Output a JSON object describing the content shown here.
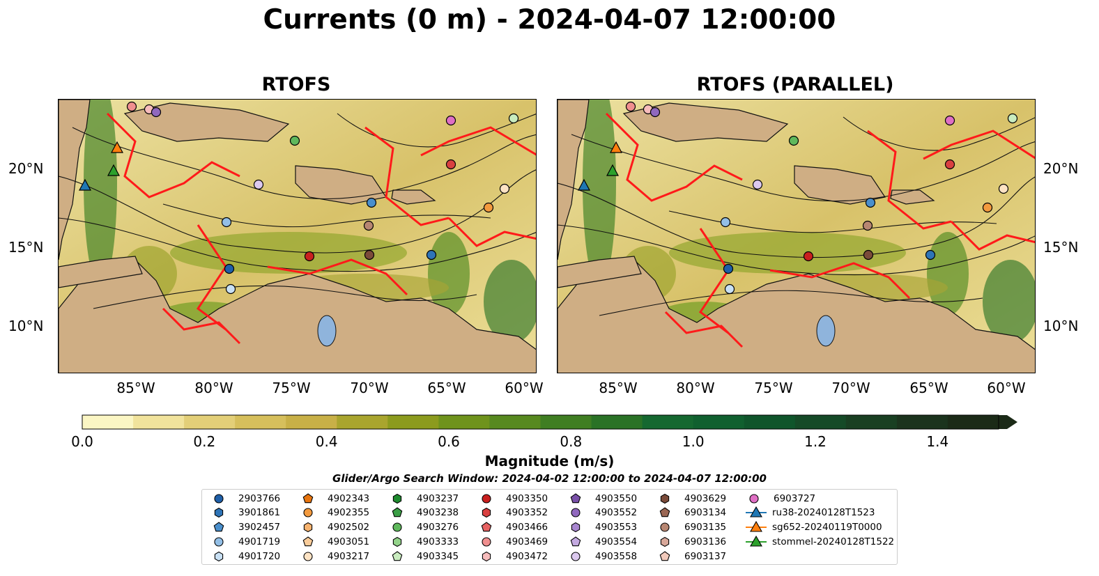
{
  "title": "Currents (0 m) - 2024-04-07 12:00:00",
  "panels": [
    {
      "title": "RTOFS"
    },
    {
      "title": "RTOFS (PARALLEL)"
    }
  ],
  "axes": {
    "lon_ticks": [
      "85°W",
      "80°W",
      "75°W",
      "70°W",
      "65°W",
      "60°W"
    ],
    "lat_ticks": [
      "20°N",
      "15°N",
      "10°N"
    ]
  },
  "colorbar": {
    "label": "Magnitude (m/s)",
    "ticks": [
      "0.0",
      "0.2",
      "0.4",
      "0.6",
      "0.8",
      "1.0",
      "1.2",
      "1.4"
    ],
    "colors": [
      "#fbf6c4",
      "#f1e39c",
      "#e3cf78",
      "#d6bf5c",
      "#c8b047",
      "#a9a52e",
      "#8c9b1e",
      "#6f931c",
      "#57891f",
      "#3f7e22",
      "#2a7226",
      "#156830",
      "#10602f",
      "#0f552b",
      "#154a27",
      "#193f22",
      "#1b331d",
      "#1b2a17"
    ]
  },
  "search_window": "Glider/Argo Search Window: 2024-04-02 12:00:00 to 2024-04-07 12:00:00",
  "legend": [
    {
      "label": "2903766",
      "marker": "circle",
      "color": "#1f5fa8"
    },
    {
      "label": "3901861",
      "marker": "hexagon",
      "color": "#2e74b7"
    },
    {
      "label": "3902457",
      "marker": "pentagon",
      "color": "#4a8fcc"
    },
    {
      "label": "4901719",
      "marker": "circle",
      "color": "#93bfe6"
    },
    {
      "label": "4901720",
      "marker": "hexagon",
      "color": "#c8e0f4"
    },
    {
      "label": "4902343",
      "marker": "pentagon",
      "color": "#e8750f"
    },
    {
      "label": "4902355",
      "marker": "circle",
      "color": "#f39a3e"
    },
    {
      "label": "4902502",
      "marker": "hexagon",
      "color": "#f7b36f"
    },
    {
      "label": "4903051",
      "marker": "pentagon",
      "color": "#f9cc9a"
    },
    {
      "label": "4903217",
      "marker": "circle",
      "color": "#fde3c4"
    },
    {
      "label": "4903237",
      "marker": "hexagon",
      "color": "#1e8a2e"
    },
    {
      "label": "4903238",
      "marker": "pentagon",
      "color": "#3a9e45"
    },
    {
      "label": "4903276",
      "marker": "circle",
      "color": "#5fb85c"
    },
    {
      "label": "4903333",
      "marker": "hexagon",
      "color": "#93d38a"
    },
    {
      "label": "4903345",
      "marker": "pentagon",
      "color": "#c9ecbf"
    },
    {
      "label": "4903350",
      "marker": "circle",
      "color": "#c9201f"
    },
    {
      "label": "4903352",
      "marker": "hexagon",
      "color": "#d94040"
    },
    {
      "label": "4903466",
      "marker": "pentagon",
      "color": "#e66262"
    },
    {
      "label": "4903469",
      "marker": "circle",
      "color": "#f08f8f"
    },
    {
      "label": "4903472",
      "marker": "hexagon",
      "color": "#f7bcbc"
    },
    {
      "label": "4903550",
      "marker": "pentagon",
      "color": "#7950a8"
    },
    {
      "label": "4903552",
      "marker": "circle",
      "color": "#9068be"
    },
    {
      "label": "4903553",
      "marker": "hexagon",
      "color": "#a886d0"
    },
    {
      "label": "4903554",
      "marker": "pentagon",
      "color": "#c3a9e0"
    },
    {
      "label": "4903558",
      "marker": "circle",
      "color": "#dcc9ef"
    },
    {
      "label": "4903629",
      "marker": "hexagon",
      "color": "#7a4b3a"
    },
    {
      "label": "6903134",
      "marker": "pentagon",
      "color": "#9a6653"
    },
    {
      "label": "6903135",
      "marker": "circle",
      "color": "#b78672"
    },
    {
      "label": "6903136",
      "marker": "hexagon",
      "color": "#d8a89a"
    },
    {
      "label": "6903137",
      "marker": "pentagon",
      "color": "#f1c9bb"
    },
    {
      "label": "6903727",
      "marker": "circle",
      "color": "#df6fc4"
    },
    {
      "label": "ru38-20240128T1523",
      "marker": "triangle-line",
      "color": "#1f77b4"
    },
    {
      "label": "sg652-20240119T0000",
      "marker": "triangle-line",
      "color": "#ff7f0e"
    },
    {
      "label": "stommel-20240128T1522",
      "marker": "triangle-line",
      "color": "#2ca02c"
    }
  ]
}
